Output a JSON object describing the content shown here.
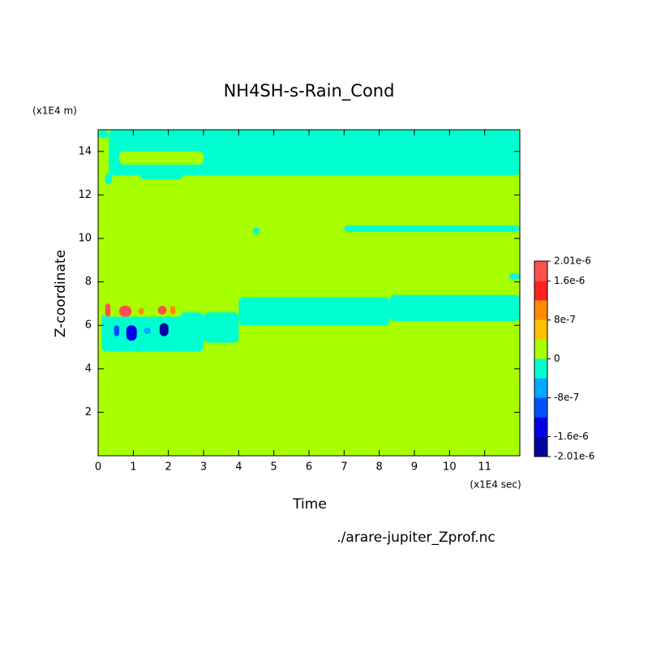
{
  "chart_data": {
    "type": "contour",
    "title": "NH4SH-s-Rain_Cond",
    "xlabel": "Time",
    "ylabel": "Z-coordinate",
    "x_unit": "(x1E4 sec)",
    "y_unit": "(x1E4 m)",
    "source": "./arare-jupiter_Zprof.nc",
    "xlim": [
      0,
      12
    ],
    "ylim": [
      0,
      15
    ],
    "xticks": [
      0,
      1,
      2,
      3,
      4,
      5,
      6,
      7,
      8,
      9,
      10,
      11
    ],
    "yticks": [
      2,
      4,
      6,
      8,
      10,
      12,
      14
    ],
    "levels": [
      -2.01e-06,
      -1.6e-06,
      -1.2e-06,
      -8e-07,
      -4e-07,
      0,
      4e-07,
      8e-07,
      1.2e-06,
      1.6e-06,
      2.01e-06
    ],
    "colors": [
      "#0000a0",
      "#0000e8",
      "#0050ff",
      "#00a8ff",
      "#00ffd0",
      "#a8ff00",
      "#ffc000",
      "#ff8c00",
      "#ff2020",
      "#ff5050"
    ],
    "cticks": [
      {
        "value": 2.01e-06,
        "label": "2.01e-6"
      },
      {
        "value": 1.6e-06,
        "label": "1.6e-6"
      },
      {
        "value": 8e-07,
        "label": "8e-7"
      },
      {
        "value": 0,
        "label": "0"
      },
      {
        "value": -8e-07,
        "label": "-8e-7"
      },
      {
        "value": -1.6e-06,
        "label": "-1.6e-6"
      },
      {
        "value": -2.01e-06,
        "label": "-2.01e-6"
      }
    ],
    "regions": [
      {
        "x": [
          0,
          12
        ],
        "z": [
          0,
          15
        ],
        "v": 2e-07
      },
      {
        "x": [
          0.3,
          12
        ],
        "z": [
          12.9,
          15
        ],
        "v": -2e-07
      },
      {
        "x": [
          0.2,
          0.4
        ],
        "z": [
          12.5,
          13
        ],
        "v": -2e-07
      },
      {
        "x": [
          1.2,
          2.4
        ],
        "z": [
          12.7,
          13
        ],
        "v": -2e-07
      },
      {
        "x": [
          0,
          0.3
        ],
        "z": [
          14.6,
          15
        ],
        "v": -2e-07
      },
      {
        "x": [
          0.6,
          3
        ],
        "z": [
          13.4,
          14
        ],
        "v": 2e-07
      },
      {
        "x": [
          0.1,
          3
        ],
        "z": [
          4.8,
          6.6
        ],
        "v": -2e-07
      },
      {
        "x": [
          3,
          4
        ],
        "z": [
          5.2,
          6.6
        ],
        "v": -2e-07
      },
      {
        "x": [
          4,
          8.3
        ],
        "z": [
          6,
          7.3
        ],
        "v": -2e-07
      },
      {
        "x": [
          8.3,
          12
        ],
        "z": [
          6.2,
          7.4
        ],
        "v": -2e-07
      },
      {
        "x": [
          0.1,
          2.4
        ],
        "z": [
          6.4,
          7.2
        ],
        "v": 2e-07
      },
      {
        "x": [
          0.2,
          0.35
        ],
        "z": [
          6.4,
          7
        ],
        "v": 1.8e-06
      },
      {
        "x": [
          0.6,
          0.95
        ],
        "z": [
          6.4,
          6.9
        ],
        "v": 1.8e-06
      },
      {
        "x": [
          1.7,
          1.95
        ],
        "z": [
          6.5,
          6.9
        ],
        "v": 1.8e-06
      },
      {
        "x": [
          2.05,
          2.2
        ],
        "z": [
          6.5,
          6.9
        ],
        "v": 1e-06
      },
      {
        "x": [
          1.15,
          1.3
        ],
        "z": [
          6.5,
          6.8
        ],
        "v": 1e-06
      },
      {
        "x": [
          0.45,
          0.6
        ],
        "z": [
          5.5,
          6
        ],
        "v": -1e-06
      },
      {
        "x": [
          0.8,
          1.1
        ],
        "z": [
          5.3,
          6
        ],
        "v": -1.4e-06
      },
      {
        "x": [
          1.75,
          2.0
        ],
        "z": [
          5.5,
          6.1
        ],
        "v": -1.8e-06
      },
      {
        "x": [
          1.3,
          1.5
        ],
        "z": [
          5.6,
          5.9
        ],
        "v": -6e-07
      },
      {
        "x": [
          7,
          12
        ],
        "z": [
          10.3,
          10.6
        ],
        "v": -2e-07
      },
      {
        "x": [
          4.4,
          4.6
        ],
        "z": [
          10.2,
          10.5
        ],
        "v": -2e-07
      },
      {
        "x": [
          11.7,
          12
        ],
        "z": [
          8.1,
          8.4
        ],
        "v": -2e-07
      }
    ]
  }
}
